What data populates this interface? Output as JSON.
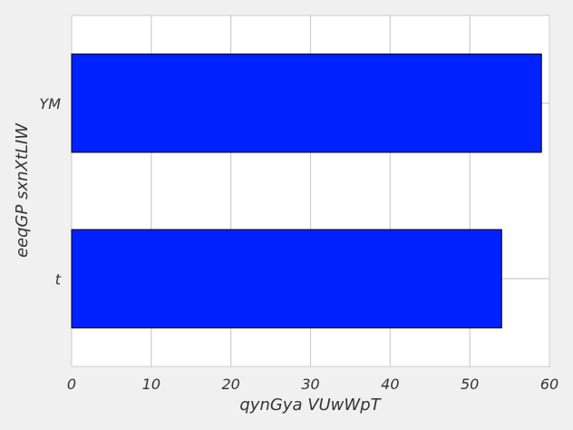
{
  "chart_data": {
    "type": "bar",
    "orientation": "horizontal",
    "categories": [
      "YM",
      "t"
    ],
    "values": [
      59,
      54
    ],
    "xlabel": "qynGya VUwWpT",
    "ylabel": "eeqGP sxnXtLIW",
    "xlim": [
      0,
      60
    ],
    "xticks": [
      "0",
      "10",
      "20",
      "30",
      "40",
      "50",
      "60"
    ],
    "grid": true,
    "bar_color": "#0022ff",
    "bar_edge_color": "#000000",
    "plot_background": "#ffffff",
    "figure_background": "#f0f0f0",
    "grid_color": "#cccccc"
  }
}
